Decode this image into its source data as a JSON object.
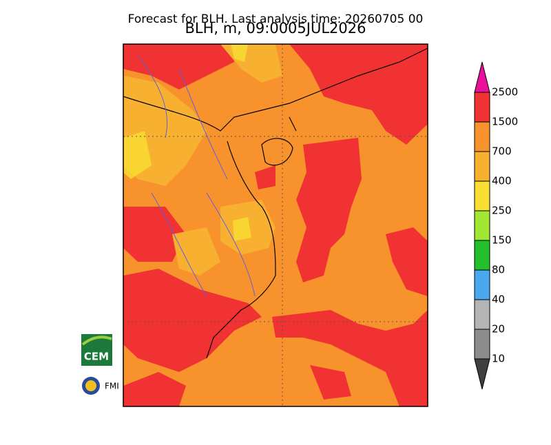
{
  "header": {
    "title": "Forecast for BLH. Last analysis time: 20260705 00",
    "subtitle": "BLH, m, 09:0005JUL2026"
  },
  "colorbar": {
    "labels": [
      2500,
      1500,
      700,
      400,
      250,
      150,
      80,
      40,
      20,
      10
    ],
    "colors": [
      "#e8109c",
      "#f03232",
      "#f8922c",
      "#f8b030",
      "#f8de32",
      "#a0e632",
      "#22c02a",
      "#4aa8f0",
      "#b4b4b4",
      "#8c8c8c",
      "#404040"
    ]
  },
  "logos": [
    "CEM",
    "FMI"
  ]
}
